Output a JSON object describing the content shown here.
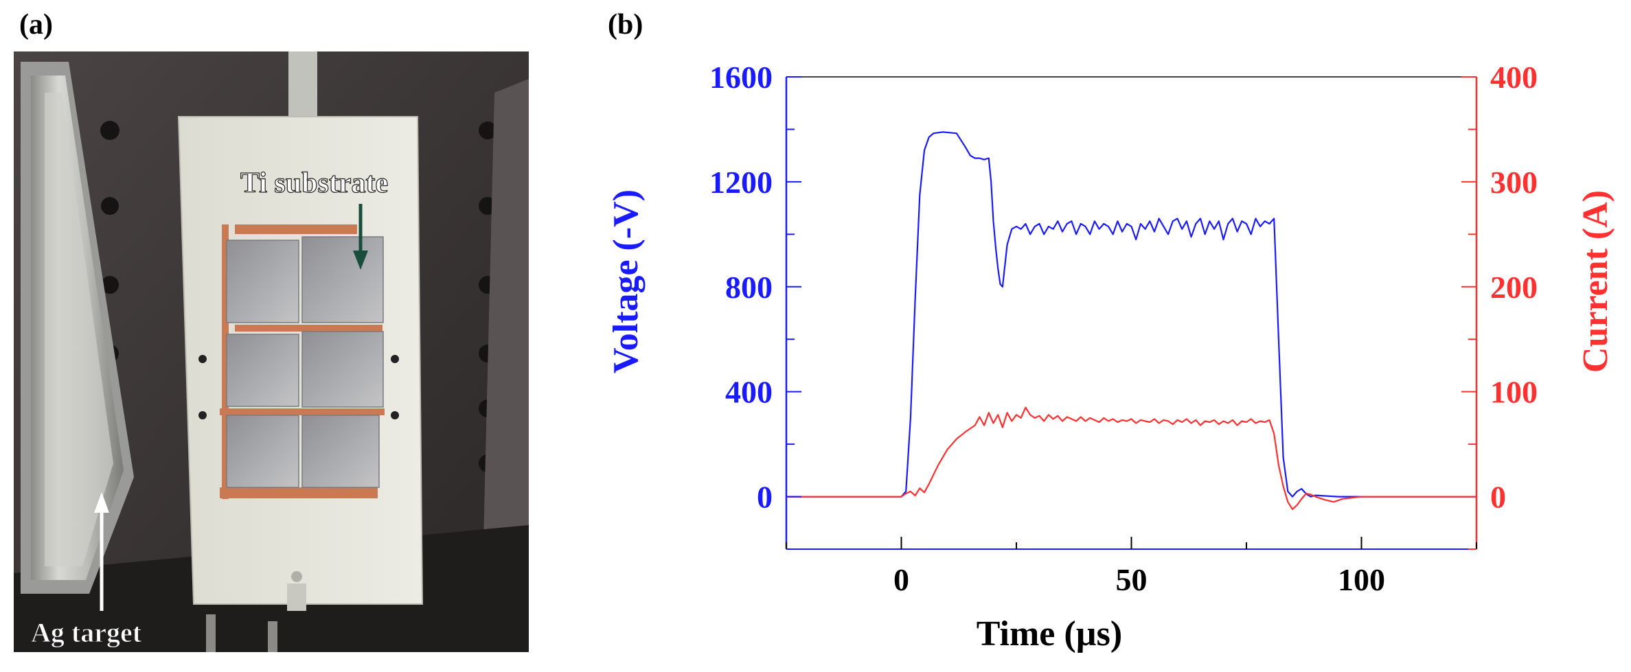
{
  "panels": {
    "a_label": "(a)",
    "b_label": "(b)"
  },
  "photo": {
    "substrate_label": "Ti substrate",
    "target_label": "Ag target"
  },
  "colors": {
    "voltage": "#1a1aff",
    "current": "#ff3030",
    "axis": "#000000"
  },
  "chart_data": {
    "type": "line",
    "xlabel": "Time (µs)",
    "ylabel_left": "Voltage (-V)",
    "ylabel_right": "Current (A)",
    "xlim": [
      -25,
      125
    ],
    "ylim_left": [
      -200,
      1600
    ],
    "ylim_right": [
      -50,
      400
    ],
    "xticks": [
      0,
      50,
      100
    ],
    "yticks_left": [
      0,
      400,
      800,
      1200,
      1600
    ],
    "yticks_right": [
      0,
      100,
      200,
      300,
      400
    ],
    "grid": false,
    "series": [
      {
        "name": "Voltage",
        "axis": "left",
        "x": [
          -25,
          0,
          1,
          2,
          3,
          4,
          5,
          6,
          7,
          9,
          12,
          14,
          15,
          16,
          17,
          18,
          19,
          19.5,
          20,
          20.5,
          21,
          21.5,
          22,
          23,
          24,
          25,
          26,
          27,
          28,
          29,
          30,
          31,
          32,
          33,
          34,
          35,
          36,
          37,
          38,
          39,
          40,
          41,
          42,
          43,
          44,
          45,
          46,
          47,
          48,
          49,
          50,
          51,
          52,
          53,
          54,
          55,
          56,
          57,
          58,
          59,
          60,
          61,
          62,
          63,
          64,
          65,
          66,
          67,
          68,
          69,
          70,
          71,
          72,
          73,
          74,
          75,
          76,
          77,
          78,
          79,
          80,
          81,
          82,
          83,
          84,
          85,
          86,
          87,
          88,
          89,
          90,
          95,
          100,
          125
        ],
        "values": [
          0,
          0,
          20,
          300,
          750,
          1150,
          1320,
          1370,
          1385,
          1390,
          1385,
          1330,
          1300,
          1290,
          1290,
          1285,
          1290,
          1200,
          1050,
          950,
          870,
          810,
          800,
          960,
          1020,
          1030,
          1020,
          1040,
          1000,
          1030,
          1040,
          1000,
          1030,
          1020,
          1050,
          1010,
          1040,
          1050,
          1000,
          1040,
          1030,
          1000,
          1050,
          1020,
          1040,
          1030,
          1000,
          1050,
          1010,
          1040,
          1030,
          980,
          1040,
          1020,
          1050,
          1010,
          1060,
          1030,
          1000,
          1050,
          1060,
          1020,
          1050,
          990,
          1040,
          1060,
          1000,
          1050,
          1020,
          1050,
          980,
          1040,
          1060,
          1010,
          1050,
          1040,
          1000,
          1060,
          1030,
          1050,
          1040,
          1060,
          600,
          150,
          20,
          0,
          20,
          30,
          10,
          0,
          5,
          0,
          0,
          0
        ]
      },
      {
        "name": "Current",
        "axis": "right",
        "x": [
          -25,
          0,
          1,
          2,
          3,
          4,
          5,
          6,
          8,
          10,
          12,
          14,
          16,
          17,
          18,
          19,
          20,
          21,
          22,
          23,
          24,
          25,
          26,
          27,
          28,
          29,
          30,
          31,
          32,
          33,
          34,
          35,
          36,
          37,
          38,
          39,
          40,
          41,
          42,
          43,
          44,
          45,
          46,
          47,
          48,
          49,
          50,
          51,
          52,
          53,
          54,
          55,
          56,
          57,
          58,
          59,
          60,
          61,
          62,
          63,
          64,
          65,
          66,
          67,
          68,
          69,
          70,
          71,
          72,
          73,
          74,
          75,
          76,
          77,
          78,
          79,
          80,
          81,
          82,
          83,
          84,
          85,
          86,
          87,
          88,
          89,
          90,
          92,
          94,
          96,
          100,
          125
        ],
        "values": [
          0,
          0,
          3,
          5,
          1,
          8,
          4,
          12,
          30,
          45,
          55,
          62,
          68,
          76,
          68,
          80,
          70,
          78,
          66,
          80,
          72,
          78,
          75,
          85,
          78,
          75,
          77,
          72,
          78,
          74,
          77,
          72,
          76,
          74,
          72,
          76,
          72,
          75,
          73,
          71,
          75,
          72,
          74,
          71,
          73,
          72,
          74,
          70,
          73,
          72,
          71,
          74,
          70,
          73,
          72,
          69,
          73,
          71,
          74,
          70,
          73,
          68,
          72,
          71,
          73,
          69,
          72,
          70,
          73,
          68,
          72,
          71,
          74,
          70,
          72,
          71,
          73,
          60,
          30,
          10,
          -5,
          -12,
          -8,
          -2,
          3,
          2,
          0,
          -3,
          -5,
          -2,
          0,
          0
        ]
      }
    ]
  }
}
